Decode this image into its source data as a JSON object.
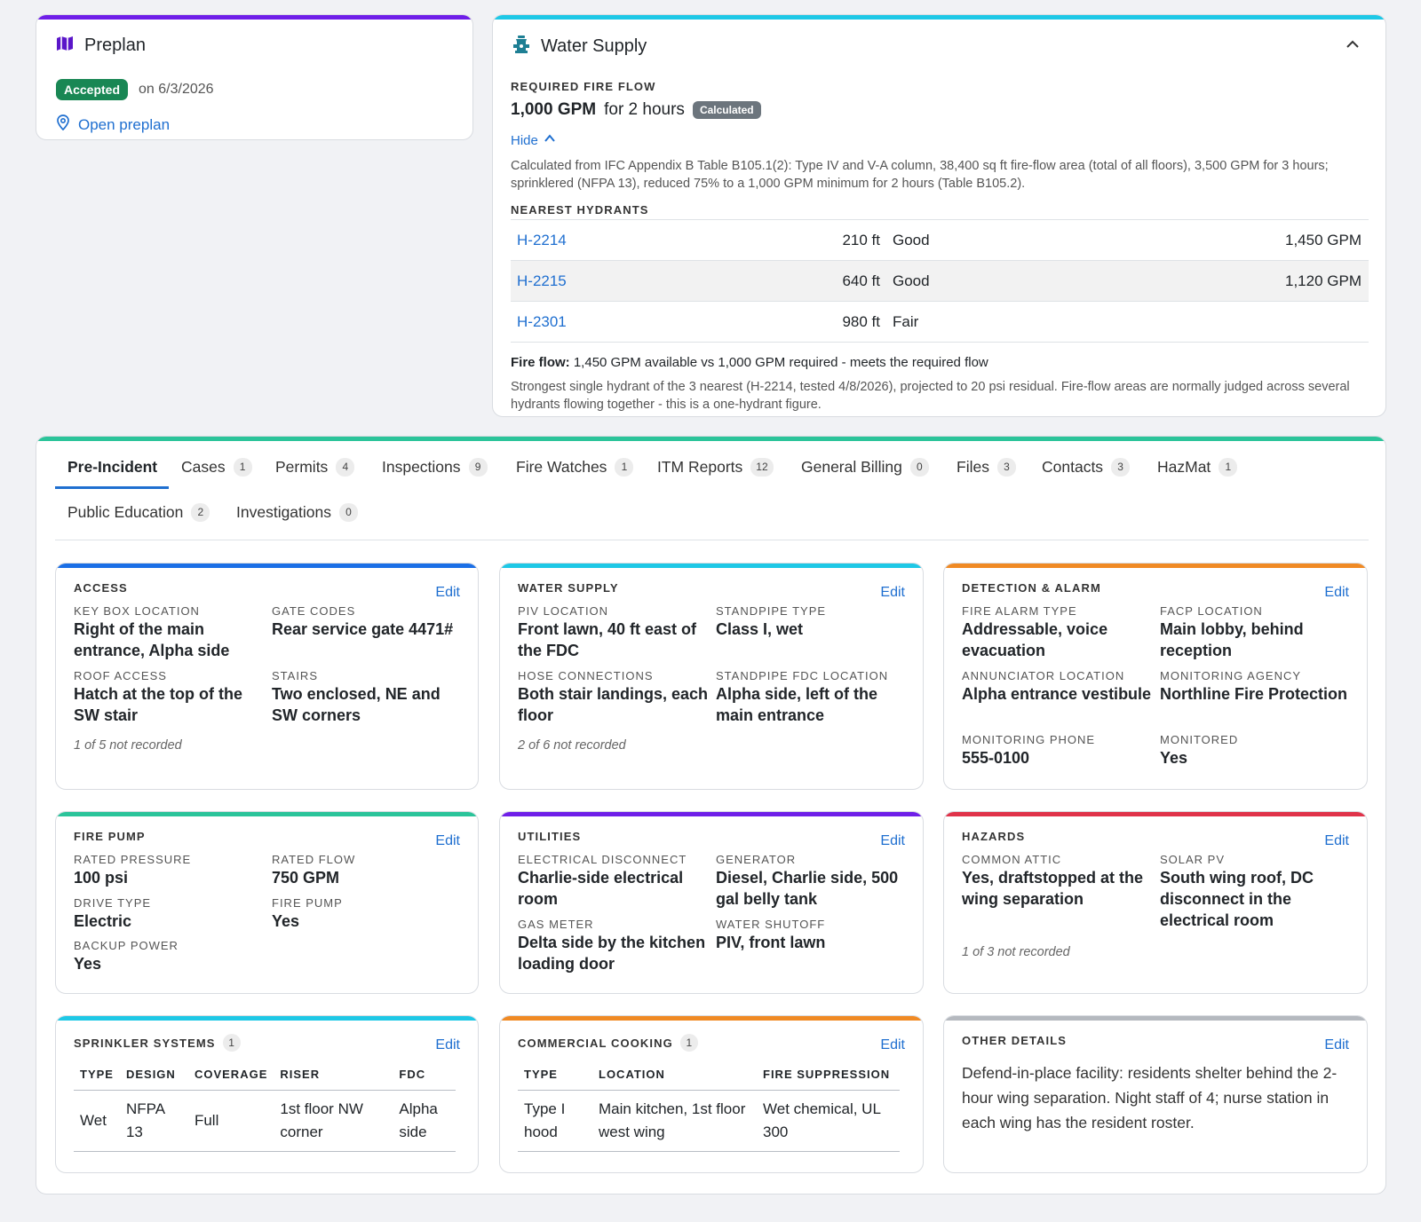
{
  "colors": {
    "purple": "#6f1fe8",
    "cyan": "#1ec8e6",
    "teal": "#2bc49a",
    "blue": "#1b6fe6",
    "orange": "#f08a24",
    "red": "#e0334a",
    "gray": "#b5b9bf",
    "green": "#198754",
    "link": "#1f6fd0"
  },
  "preplan": {
    "icon": "map-icon",
    "title": "Preplan",
    "status": "Accepted",
    "date": "on 6/3/2026",
    "open_link": "Open preplan"
  },
  "water_supply": {
    "icon": "hydrant-icon",
    "title": "Water Supply",
    "required_label": "REQUIRED FIRE FLOW",
    "flow_value": "1,000 GPM",
    "flow_duration": "for 2 hours",
    "calculated_badge": "Calculated",
    "hide_label": "Hide",
    "calculation_text": "Calculated from IFC Appendix B Table B105.1(2): Type IV and V-A column, 38,400 sq ft fire-flow area (total of all floors), 3,500 GPM for 3 hours; sprinklered (NFPA 13), reduced 75% to a 1,000 GPM minimum for 2 hours (Table B105.2).",
    "nearest_label": "NEAREST HYDRANTS",
    "hydrants": [
      {
        "id": "H-2214",
        "distance": "210 ft",
        "condition": "Good",
        "flow": "1,450 GPM"
      },
      {
        "id": "H-2215",
        "distance": "640 ft",
        "condition": "Good",
        "flow": "1,120 GPM"
      },
      {
        "id": "H-2301",
        "distance": "980 ft",
        "condition": "Fair",
        "flow": ""
      }
    ],
    "fire_flow_label": "Fire flow:",
    "fire_flow_text": "1,450 GPM available vs 1,000 GPM required - meets the required flow",
    "fire_flow_note": "Strongest single hydrant of the 3 nearest (H-2214, tested 4/8/2026), projected to 20 psi residual. Fire-flow areas are normally judged across several hydrants flowing together - this is a one-hydrant figure."
  },
  "tabs": [
    {
      "label": "Pre-Incident",
      "count": ""
    },
    {
      "label": "Cases",
      "count": "1"
    },
    {
      "label": "Permits",
      "count": "4"
    },
    {
      "label": "Inspections",
      "count": "9"
    },
    {
      "label": "Fire Watches",
      "count": "1"
    },
    {
      "label": "ITM Reports",
      "count": "12"
    },
    {
      "label": "General Billing",
      "count": "0"
    },
    {
      "label": "Files",
      "count": "3"
    },
    {
      "label": "Contacts",
      "count": "3"
    },
    {
      "label": "HazMat",
      "count": "1"
    },
    {
      "label": "Public Education",
      "count": "2"
    },
    {
      "label": "Investigations",
      "count": "0"
    }
  ],
  "edit_label": "Edit",
  "access": {
    "title": "ACCESS",
    "fields": [
      {
        "label": "KEY BOX LOCATION",
        "value": "Right of the main entrance, Alpha side"
      },
      {
        "label": "GATE CODES",
        "value": "Rear service gate 4471#"
      },
      {
        "label": "ROOF ACCESS",
        "value": "Hatch at the top of the SW stair"
      },
      {
        "label": "STAIRS",
        "value": "Two enclosed, NE and SW corners"
      }
    ],
    "not_recorded": "1 of 5 not recorded"
  },
  "water_card": {
    "title": "WATER SUPPLY",
    "fields": [
      {
        "label": "PIV LOCATION",
        "value": "Front lawn, 40 ft east of the FDC"
      },
      {
        "label": "STANDPIPE TYPE",
        "value": "Class I, wet"
      },
      {
        "label": "HOSE CONNECTIONS",
        "value": "Both stair landings, each floor"
      },
      {
        "label": "STANDPIPE FDC LOCATION",
        "value": "Alpha side, left of the main entrance"
      }
    ],
    "not_recorded": "2 of 6 not recorded"
  },
  "detection": {
    "title": "DETECTION & ALARM",
    "fields": [
      {
        "label": "FIRE ALARM TYPE",
        "value": "Addressable, voice evacuation"
      },
      {
        "label": "FACP LOCATION",
        "value": "Main lobby, behind reception"
      },
      {
        "label": "ANNUNCIATOR LOCATION",
        "value": "Alpha entrance vestibule"
      },
      {
        "label": "MONITORING AGENCY",
        "value": "Northline Fire Protection"
      },
      {
        "label": "MONITORING PHONE",
        "value": "555-0100"
      },
      {
        "label": "MONITORED",
        "value": "Yes"
      }
    ]
  },
  "fire_pump": {
    "title": "FIRE PUMP",
    "fields": [
      {
        "label": "RATED PRESSURE",
        "value": "100 psi"
      },
      {
        "label": "RATED FLOW",
        "value": "750 GPM"
      },
      {
        "label": "DRIVE TYPE",
        "value": "Electric"
      },
      {
        "label": "FIRE PUMP",
        "value": "Yes"
      },
      {
        "label": "BACKUP POWER",
        "value": "Yes"
      }
    ]
  },
  "utilities": {
    "title": "UTILITIES",
    "fields": [
      {
        "label": "ELECTRICAL DISCONNECT",
        "value": "Charlie-side electrical room"
      },
      {
        "label": "GENERATOR",
        "value": "Diesel, Charlie side, 500 gal belly tank"
      },
      {
        "label": "GAS METER",
        "value": "Delta side by the kitchen loading door"
      },
      {
        "label": "WATER SHUTOFF",
        "value": "PIV, front lawn"
      }
    ]
  },
  "hazards": {
    "title": "HAZARDS",
    "fields": [
      {
        "label": "COMMON ATTIC",
        "value": "Yes, draftstopped at the wing separation"
      },
      {
        "label": "SOLAR PV",
        "value": "South wing roof, DC disconnect in the electrical room"
      }
    ],
    "not_recorded": "1 of 3 not recorded"
  },
  "sprinklers": {
    "title": "SPRINKLER SYSTEMS",
    "count": "1",
    "headers": [
      "TYPE",
      "DESIGN",
      "COVERAGE",
      "RISER",
      "FDC"
    ],
    "rows": [
      [
        "Wet",
        "NFPA 13",
        "Full",
        "1st floor NW corner",
        "Alpha side"
      ]
    ]
  },
  "cooking": {
    "title": "COMMERCIAL COOKING",
    "count": "1",
    "headers": [
      "TYPE",
      "LOCATION",
      "FIRE SUPPRESSION"
    ],
    "rows": [
      [
        "Type I hood",
        "Main kitchen, 1st floor west wing",
        "Wet chemical, UL 300"
      ]
    ]
  },
  "other": {
    "title": "OTHER DETAILS",
    "text": "Defend-in-place facility: residents shelter behind the 2-hour wing separation. Night staff of 4; nurse station in each wing has the resident roster."
  }
}
